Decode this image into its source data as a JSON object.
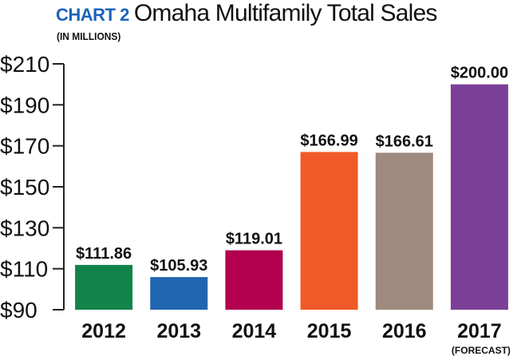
{
  "header": {
    "chart_number": "CHART 2",
    "title": "Omaha Multifamily Total Sales",
    "subtitle": "(IN MILLIONS)"
  },
  "colors": {
    "chart_number": "#1c63b7",
    "axis": "#222222"
  },
  "chart_data": {
    "type": "bar",
    "title": "Omaha Multifamily Total Sales",
    "subtitle": "(IN MILLIONS)",
    "categories": [
      "2012",
      "2013",
      "2014",
      "2015",
      "2016",
      "2017"
    ],
    "category_sublabels": [
      "",
      "",
      "",
      "",
      "",
      "(FORECAST)"
    ],
    "values": [
      111.86,
      105.93,
      119.01,
      166.99,
      166.61,
      200.0
    ],
    "value_labels": [
      "$111.86",
      "$105.93",
      "$119.01",
      "$166.99",
      "$166.61",
      "$200.00"
    ],
    "bar_colors": [
      "#12834a",
      "#2166b0",
      "#b3004f",
      "#f05a28",
      "#9e8a7e",
      "#7b3f98"
    ],
    "ylim": [
      90,
      210
    ],
    "yticks": [
      90,
      110,
      130,
      150,
      170,
      190,
      210
    ],
    "ytick_labels": [
      "$90",
      "$110",
      "$130",
      "$150",
      "$170",
      "$190",
      "$210"
    ],
    "xlabel": "",
    "ylabel": "",
    "grid": false,
    "legend": "none"
  }
}
